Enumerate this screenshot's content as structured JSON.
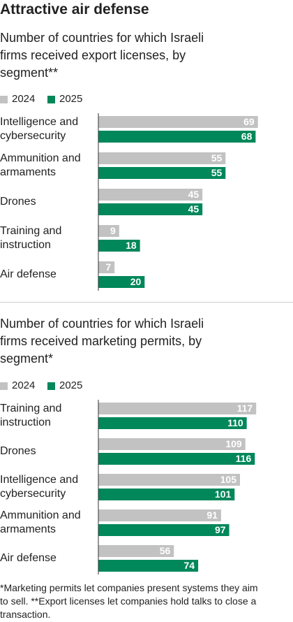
{
  "title": "Attractive air defense",
  "chart_data": [
    {
      "type": "bar",
      "orientation": "horizontal",
      "subtitle": "Number of countries for which Israeli firms received export licenses, by segment**",
      "categories": [
        "Intelligence and cybersecurity",
        "Ammunition and armaments",
        "Drones",
        "Training and instruction",
        "Air defense"
      ],
      "series": [
        {
          "name": "2024",
          "color": "#c2c2c2",
          "values": [
            69,
            55,
            45,
            9,
            7
          ]
        },
        {
          "name": "2025",
          "color": "#00875a",
          "values": [
            68,
            55,
            45,
            18,
            20
          ]
        }
      ],
      "xlim": [
        0,
        70
      ]
    },
    {
      "type": "bar",
      "orientation": "horizontal",
      "subtitle": "Number of countries for which Israeli firms received marketing permits, by segment*",
      "categories": [
        "Training and instruction",
        "Drones",
        "Intelligence and cybersecurity",
        "Ammunition and armaments",
        "Air defense"
      ],
      "series": [
        {
          "name": "2024",
          "color": "#c2c2c2",
          "values": [
            117,
            109,
            105,
            91,
            56
          ]
        },
        {
          "name": "2025",
          "color": "#00875a",
          "values": [
            110,
            116,
            101,
            97,
            74
          ]
        }
      ],
      "xlim": [
        0,
        120
      ]
    }
  ],
  "footnote": "*Marketing permits let companies present systems they aim to sell. **Export licenses let companies hold talks to close a transaction."
}
